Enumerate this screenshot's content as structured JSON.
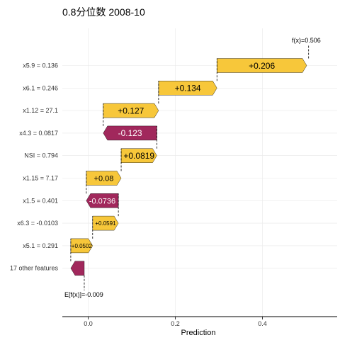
{
  "chart_data": {
    "type": "waterfall",
    "title": "0.8分位数 2008-10",
    "xlabel": "Prediction",
    "ylabel": "",
    "xlim": [
      -0.05,
      0.55
    ],
    "xticks": [
      0.0,
      0.2,
      0.4
    ],
    "xtick_labels": [
      "0.0",
      "0.2",
      "0.4"
    ],
    "base_value": -0.009,
    "base_label": "E[f(x)]=-0.009",
    "final_value": 0.506,
    "final_label": "f(x)=0.506",
    "colors": {
      "positive": "#f7c73a",
      "negative": "#a1285c"
    },
    "features": [
      {
        "name": "x5.9 = 0.136",
        "value": 0.206,
        "label": "+0.206"
      },
      {
        "name": "x6.1 = 0.246",
        "value": 0.134,
        "label": "+0.134"
      },
      {
        "name": "x1.12 = 27.1",
        "value": 0.127,
        "label": "+0.127"
      },
      {
        "name": "x4.3 = 0.0817",
        "value": -0.123,
        "label": "-0.123"
      },
      {
        "name": "NSI = 0.794",
        "value": 0.0819,
        "label": "+0.0819"
      },
      {
        "name": "x1.15 = 7.17",
        "value": 0.08,
        "label": "+0.08"
      },
      {
        "name": "x1.5 = 0.401",
        "value": -0.0736,
        "label": "-0.0736"
      },
      {
        "name": "x6.3 = -0.0103",
        "value": 0.0591,
        "label": "+0.0591"
      },
      {
        "name": "x5.1 = 0.291",
        "value": 0.0502,
        "label": "+0.0502"
      },
      {
        "name": "17 other features",
        "value": -0.031,
        "label": ""
      }
    ]
  }
}
